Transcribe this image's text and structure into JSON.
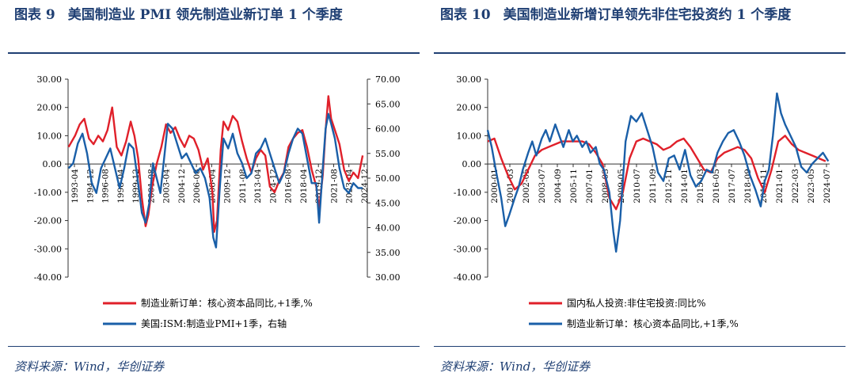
{
  "panels": [
    {
      "figure_label": "图表 9",
      "title": "美国制造业 PMI 领先制造业新订单 1 个季度",
      "source": "资料来源：Wind，华创证券"
    },
    {
      "figure_label": "图表 10",
      "title": "美国制造业新增订单领先非住宅投资约 1 个季度",
      "source": "资料来源：Wind，华创证券"
    }
  ],
  "chart_data": [
    {
      "type": "line",
      "title": "",
      "xlabel": "",
      "ylabel": "",
      "ylim": [
        -40,
        30
      ],
      "y_ticks": [
        "30.00",
        "20.00",
        "10.00",
        "0.00",
        "-10.00",
        "-20.00",
        "-30.00",
        "-40.00"
      ],
      "y2lim": [
        30,
        70
      ],
      "y2_ticks": [
        "70.00",
        "65.00",
        "60.00",
        "55.00",
        "50.00",
        "45.00",
        "40.00",
        "35.00",
        "30.00"
      ],
      "x_range": [
        1993.25,
        2025.5
      ],
      "x_tick_labels": [
        "1993-04",
        "1994-12",
        "1996-08",
        "1998-04",
        "1999-12",
        "2001-08",
        "2003-04",
        "2004-12",
        "2006-08",
        "2008-04",
        "2009-12",
        "2011-08",
        "2013-04",
        "2014-12",
        "2016-08",
        "2018-04",
        "2019-12",
        "2021-08",
        "2023-04",
        "2024-12"
      ],
      "legend_position": "bottom",
      "grid": false,
      "series": [
        {
          "name": "制造业新订单：核心资本品同比,+1季,%",
          "axis": "left",
          "color": "#e0202a",
          "x": [
            1993.3,
            1994.0,
            1994.5,
            1995.0,
            1995.5,
            1996.0,
            1996.5,
            1997.0,
            1997.5,
            1998.0,
            1998.5,
            1999.0,
            1999.5,
            2000.0,
            2000.4,
            2000.8,
            2001.2,
            2001.6,
            2001.9,
            2002.3,
            2002.8,
            2003.3,
            2003.8,
            2004.3,
            2004.8,
            2005.3,
            2005.8,
            2006.3,
            2006.8,
            2007.3,
            2007.8,
            2008.3,
            2008.8,
            2009.0,
            2009.3,
            2009.7,
            2010.0,
            2010.5,
            2011.0,
            2011.5,
            2012.0,
            2012.5,
            2013.0,
            2013.5,
            2014.0,
            2014.5,
            2015.0,
            2015.5,
            2016.0,
            2016.5,
            2017.0,
            2017.5,
            2018.0,
            2018.5,
            2019.0,
            2019.5,
            2020.0,
            2020.3,
            2020.7,
            2021.0,
            2021.3,
            2021.6,
            2022.0,
            2022.5,
            2023.0,
            2023.5,
            2024.0,
            2024.5,
            2025.0
          ],
          "values": [
            6,
            10,
            14,
            16,
            9,
            7,
            10,
            8,
            12,
            20,
            6,
            3,
            8,
            15,
            10,
            2,
            -12,
            -22,
            -18,
            -8,
            0,
            6,
            14,
            11,
            13,
            9,
            6,
            10,
            9,
            5,
            -2,
            2,
            -10,
            -24,
            -20,
            5,
            15,
            12,
            17,
            15,
            8,
            2,
            -3,
            2,
            5,
            3,
            -8,
            -10,
            -6,
            -3,
            6,
            9,
            11,
            12,
            6,
            -2,
            -8,
            -16,
            -4,
            12,
            24,
            16,
            12,
            7,
            -2,
            -6,
            -3,
            -5,
            3
          ]
        },
        {
          "name": "美国:ISM:制造业PMI+1季，右轴",
          "axis": "right",
          "color": "#1a5fa8",
          "x": [
            1993.3,
            1993.8,
            1994.3,
            1994.8,
            1995.3,
            1995.8,
            1996.3,
            1996.8,
            1997.3,
            1997.8,
            1998.3,
            1998.8,
            1999.3,
            1999.8,
            2000.3,
            2000.8,
            2001.2,
            2001.6,
            2002.0,
            2002.4,
            2002.8,
            2003.2,
            2003.6,
            2004.0,
            2004.5,
            2005.0,
            2005.5,
            2006.0,
            2006.5,
            2007.0,
            2007.5,
            2008.0,
            2008.5,
            2008.9,
            2009.2,
            2009.6,
            2010.0,
            2010.5,
            2011.0,
            2011.5,
            2012.0,
            2012.5,
            2013.0,
            2013.5,
            2014.0,
            2014.5,
            2015.0,
            2015.5,
            2016.0,
            2016.5,
            2017.0,
            2017.5,
            2018.0,
            2018.5,
            2019.0,
            2019.5,
            2020.0,
            2020.3,
            2020.7,
            2021.0,
            2021.3,
            2021.6,
            2022.0,
            2022.5,
            2023.0,
            2023.5,
            2024.0,
            2024.5,
            2025.0
          ],
          "values": [
            52,
            53,
            57,
            59,
            55,
            49,
            47,
            52,
            54,
            56,
            52,
            48,
            52,
            57,
            56,
            49,
            43,
            41,
            45,
            53,
            50,
            47,
            54,
            61,
            60,
            57,
            54,
            55,
            53,
            51,
            52,
            50,
            46,
            38,
            36,
            48,
            58,
            56,
            59,
            55,
            53,
            50,
            51,
            55,
            56,
            58,
            55,
            52,
            49,
            51,
            55,
            58,
            60,
            59,
            54,
            49,
            49,
            41,
            52,
            60,
            63,
            61,
            58,
            52,
            48,
            47,
            49,
            48,
            48
          ]
        }
      ]
    },
    {
      "type": "line",
      "title": "",
      "xlabel": "",
      "ylabel": "",
      "ylim": [
        -40,
        30
      ],
      "y_ticks": [
        "30.00",
        "20.00",
        "10.00",
        "0.00",
        "-10.00",
        "-20.00",
        "-30.00",
        "-40.00"
      ],
      "x_range": [
        2000.0,
        2025.3
      ],
      "x_tick_labels": [
        "2000-01",
        "2001-03",
        "2002-05",
        "2003-07",
        "2004-09",
        "2005-11",
        "2007-01",
        "2008-03",
        "2009-05",
        "2010-07",
        "2011-09",
        "2012-11",
        "2014-01",
        "2015-03",
        "2016-05",
        "2017-07",
        "2018-09",
        "2019-11",
        "2021-01",
        "2022-03",
        "2023-05",
        "2024-07"
      ],
      "legend_position": "bottom",
      "grid": false,
      "series": [
        {
          "name": "国内私人投资:非住宅投资:同比%",
          "color": "#e0202a",
          "x": [
            2000.0,
            2000.5,
            2001.0,
            2001.5,
            2002.0,
            2002.5,
            2003.0,
            2003.5,
            2004.0,
            2004.5,
            2005.0,
            2005.5,
            2006.0,
            2006.5,
            2007.0,
            2007.5,
            2008.0,
            2008.5,
            2009.0,
            2009.5,
            2010.0,
            2010.5,
            2011.0,
            2011.5,
            2012.0,
            2012.5,
            2013.0,
            2013.5,
            2014.0,
            2014.5,
            2015.0,
            2015.5,
            2016.0,
            2016.5,
            2017.0,
            2017.5,
            2018.0,
            2018.5,
            2019.0,
            2019.5,
            2020.0,
            2020.5,
            2021.0,
            2021.5,
            2022.0,
            2022.5,
            2023.0,
            2023.5,
            2024.0,
            2024.5,
            2025.0
          ],
          "values": [
            8,
            9,
            2,
            -4,
            -9,
            -7,
            -2,
            3,
            5,
            6,
            7,
            8,
            8,
            8,
            8,
            7,
            4,
            0,
            -12,
            -16,
            -10,
            2,
            8,
            9,
            8,
            7,
            5,
            6,
            8,
            9,
            6,
            2,
            -2,
            -3,
            2,
            4,
            5,
            6,
            5,
            2,
            -5,
            -10,
            -2,
            8,
            10,
            7,
            5,
            4,
            3,
            2,
            1
          ]
        },
        {
          "name": "制造业新订单：核心资本品同比,+1季,%",
          "color": "#1a5fa8",
          "x": [
            2000.0,
            2000.3,
            2000.6,
            2001.0,
            2001.3,
            2001.6,
            2002.0,
            2002.3,
            2002.6,
            2003.0,
            2003.3,
            2003.6,
            2004.0,
            2004.3,
            2004.6,
            2005.0,
            2005.3,
            2005.6,
            2006.0,
            2006.3,
            2006.6,
            2007.0,
            2007.3,
            2007.6,
            2008.0,
            2008.3,
            2008.6,
            2009.0,
            2009.3,
            2009.5,
            2009.8,
            2010.2,
            2010.6,
            2011.0,
            2011.4,
            2011.8,
            2012.2,
            2012.6,
            2013.0,
            2013.4,
            2013.8,
            2014.2,
            2014.6,
            2015.0,
            2015.4,
            2015.8,
            2016.2,
            2016.6,
            2017.0,
            2017.4,
            2017.8,
            2018.2,
            2018.6,
            2019.0,
            2019.4,
            2019.8,
            2020.2,
            2020.5,
            2020.8,
            2021.1,
            2021.4,
            2021.7,
            2022.0,
            2022.4,
            2022.8,
            2023.2,
            2023.6,
            2024.0,
            2024.4,
            2024.8,
            2025.2
          ],
          "values": [
            12,
            6,
            -2,
            -12,
            -22,
            -18,
            -12,
            -8,
            -2,
            4,
            8,
            3,
            9,
            12,
            8,
            14,
            10,
            6,
            12,
            8,
            10,
            6,
            8,
            4,
            6,
            0,
            -2,
            -10,
            -24,
            -31,
            -20,
            8,
            17,
            15,
            18,
            12,
            6,
            -3,
            -6,
            2,
            3,
            -2,
            5,
            -4,
            -8,
            -6,
            -2,
            -3,
            4,
            8,
            11,
            12,
            8,
            3,
            -4,
            -9,
            -15,
            -6,
            -2,
            10,
            25,
            18,
            14,
            10,
            6,
            -1,
            -3,
            0,
            2,
            4,
            1
          ]
        }
      ]
    }
  ]
}
